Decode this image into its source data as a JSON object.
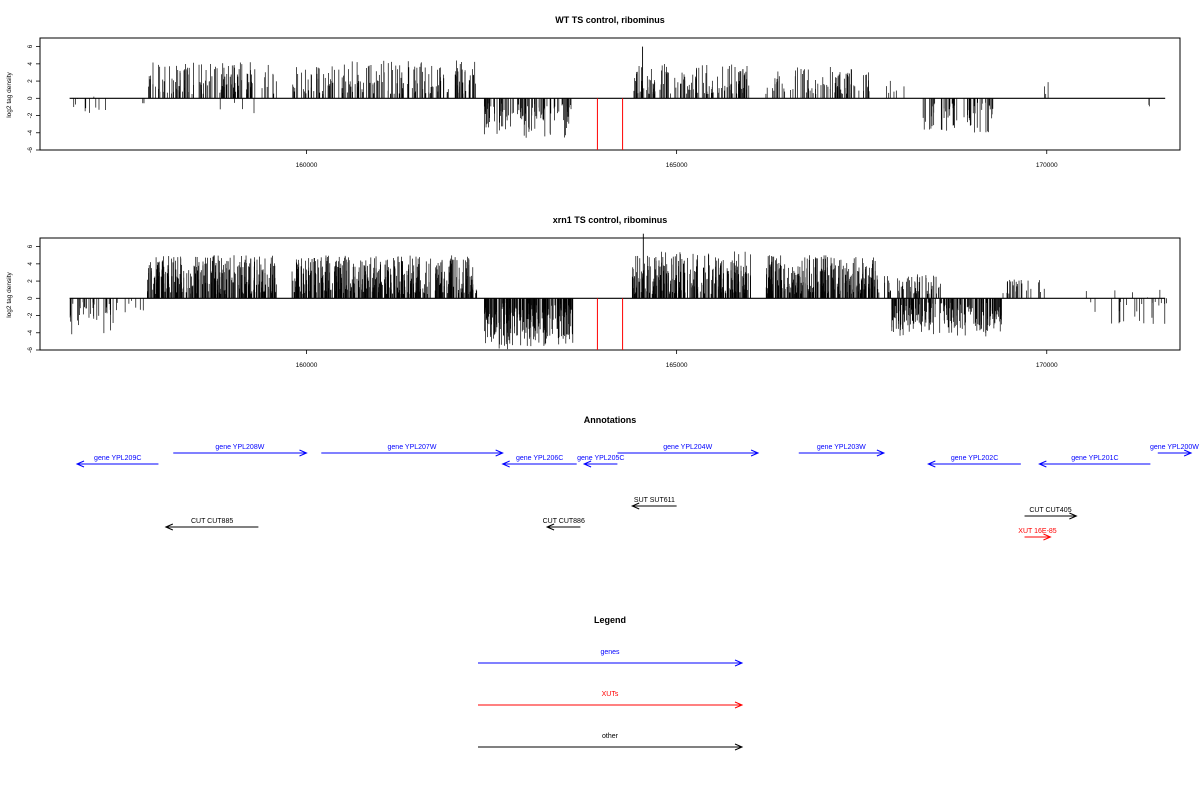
{
  "chart_data": [
    {
      "type": "bar",
      "panel": "wt",
      "title": "WT TS control, ribominus",
      "ylabel": "log2 tag density",
      "xlabel": "",
      "xlim": [
        156400,
        171800
      ],
      "ylim": [
        -6,
        7
      ],
      "yticks": [
        -6,
        -4,
        -2,
        0,
        2,
        4,
        6
      ],
      "xticks": [
        160000,
        165000,
        170000
      ],
      "xtick_labels": [
        "160000",
        "165000",
        "170000"
      ],
      "regions": [
        {
          "start": 156800,
          "end": 157300,
          "density": 0.12,
          "min": -2.2,
          "max": 0.2,
          "sign": -1
        },
        {
          "start": 157700,
          "end": 157850,
          "density": 0.05,
          "min": -1.2,
          "max": 0,
          "sign": -1
        },
        {
          "start": 157850,
          "end": 159600,
          "density": 0.35,
          "min": 0.5,
          "max": 4.2,
          "sign": 1
        },
        {
          "start": 158800,
          "end": 159500,
          "density": 0.03,
          "min": -2.5,
          "max": -0.5,
          "sign": -1
        },
        {
          "start": 159800,
          "end": 162300,
          "density": 0.35,
          "min": 0.5,
          "max": 4.4,
          "sign": 1
        },
        {
          "start": 162400,
          "end": 163600,
          "density": 0.4,
          "min": -4.6,
          "max": -0.5,
          "sign": -1
        },
        {
          "start": 164400,
          "end": 166000,
          "density": 0.4,
          "min": 0.5,
          "max": 4.0,
          "sign": 1
        },
        {
          "start": 166200,
          "end": 167600,
          "density": 0.3,
          "min": 0.5,
          "max": 3.8,
          "sign": 1
        },
        {
          "start": 167700,
          "end": 168200,
          "density": 0.06,
          "min": 0.5,
          "max": 2.2,
          "sign": 1
        },
        {
          "start": 168300,
          "end": 169300,
          "density": 0.3,
          "min": -4.0,
          "max": -0.5,
          "sign": -1
        },
        {
          "start": 169800,
          "end": 170100,
          "density": 0.05,
          "min": 0.5,
          "max": 2.0,
          "sign": 1
        },
        {
          "start": 171200,
          "end": 171700,
          "density": 0.02,
          "min": -1.6,
          "max": -0.5,
          "sign": -1
        }
      ],
      "spikes": [
        {
          "x": 164540,
          "y": 6.0
        }
      ],
      "red_lines": [
        {
          "x": 163930,
          "y": -6
        },
        {
          "x": 164270,
          "y": -6
        }
      ]
    },
    {
      "type": "bar",
      "panel": "xrn1",
      "title": "xrn1 TS control, ribominus",
      "ylabel": "log2 tag density",
      "xlabel": "",
      "xlim": [
        156400,
        171800
      ],
      "ylim": [
        -6,
        7
      ],
      "yticks": [
        -6,
        -4,
        -2,
        0,
        2,
        4,
        6
      ],
      "xticks": [
        160000,
        165000,
        170000
      ],
      "xtick_labels": [
        "160000",
        "165000",
        "170000"
      ],
      "regions": [
        {
          "start": 156800,
          "end": 157400,
          "density": 0.3,
          "min": -4.5,
          "max": -0.3,
          "sign": -1
        },
        {
          "start": 157400,
          "end": 157800,
          "density": 0.1,
          "min": -2.0,
          "max": -0.3,
          "sign": -1
        },
        {
          "start": 157850,
          "end": 159600,
          "density": 0.8,
          "min": 0.5,
          "max": 5.0,
          "sign": 1
        },
        {
          "start": 159800,
          "end": 162300,
          "density": 0.8,
          "min": 0.5,
          "max": 5.0,
          "sign": 1
        },
        {
          "start": 162400,
          "end": 163600,
          "density": 0.9,
          "min": -6.0,
          "max": -0.5,
          "sign": -1
        },
        {
          "start": 164400,
          "end": 166000,
          "density": 0.8,
          "min": 0.5,
          "max": 5.5,
          "sign": 1
        },
        {
          "start": 166200,
          "end": 167700,
          "density": 0.8,
          "min": 0.5,
          "max": 5.0,
          "sign": 1
        },
        {
          "start": 167700,
          "end": 168600,
          "density": 0.35,
          "min": 0.5,
          "max": 2.8,
          "sign": 1
        },
        {
          "start": 167900,
          "end": 169400,
          "density": 0.7,
          "min": -4.5,
          "max": -0.5,
          "sign": -1
        },
        {
          "start": 169400,
          "end": 170000,
          "density": 0.2,
          "min": 0.5,
          "max": 2.2,
          "sign": 1
        },
        {
          "start": 170500,
          "end": 171700,
          "density": 0.12,
          "min": -3.0,
          "max": 1.0,
          "sign": 0
        }
      ],
      "spikes": [
        {
          "x": 164550,
          "y": 7.5
        }
      ],
      "red_lines": [
        {
          "x": 163930,
          "y": -6
        },
        {
          "x": 164270,
          "y": -6
        }
      ]
    },
    {
      "type": "annotation_track",
      "panel": "annotations",
      "title": "Annotations",
      "xlim": [
        156400,
        171800
      ],
      "features": [
        {
          "label": "gene YPL209C",
          "start": 156900,
          "end": 158000,
          "dir": -1,
          "row": 1,
          "color": "#0000ff"
        },
        {
          "label": "gene YPL208W",
          "start": 158200,
          "end": 160000,
          "dir": 1,
          "row": 0,
          "color": "#0000ff"
        },
        {
          "label": "gene YPL207W",
          "start": 160200,
          "end": 162650,
          "dir": 1,
          "row": 0,
          "color": "#0000ff"
        },
        {
          "label": "gene YPL206C",
          "start": 162650,
          "end": 163650,
          "dir": -1,
          "row": 1,
          "color": "#0000ff"
        },
        {
          "label": "gene YPL205C",
          "start": 163750,
          "end": 164200,
          "dir": -1,
          "row": 1,
          "color": "#0000ff"
        },
        {
          "label": "gene YPL204W",
          "start": 164200,
          "end": 166100,
          "dir": 1,
          "row": 0,
          "color": "#0000ff"
        },
        {
          "label": "gene YPL203W",
          "start": 166650,
          "end": 167800,
          "dir": 1,
          "row": 0,
          "color": "#0000ff"
        },
        {
          "label": "gene YPL202C",
          "start": 168400,
          "end": 169650,
          "dir": -1,
          "row": 1,
          "color": "#0000ff"
        },
        {
          "label": "gene YPL201C",
          "start": 169900,
          "end": 171400,
          "dir": -1,
          "row": 1,
          "color": "#0000ff"
        },
        {
          "label": "gene YPL200W",
          "start": 171500,
          "end": 171950,
          "dir": 1,
          "row": 0,
          "color": "#0000ff"
        },
        {
          "label": "SUT SUT611",
          "start": 164400,
          "end": 165000,
          "dir": -1,
          "row": 2,
          "color": "#000000"
        },
        {
          "label": "CUT CUT885",
          "start": 158100,
          "end": 159350,
          "dir": -1,
          "row": 3,
          "color": "#000000"
        },
        {
          "label": "CUT CUT886",
          "start": 163250,
          "end": 163700,
          "dir": -1,
          "row": 3,
          "color": "#000000"
        },
        {
          "label": "CUT CUT405",
          "start": 169700,
          "end": 170400,
          "dir": 1,
          "row": 4,
          "color": "#000000"
        },
        {
          "label": "XUT 16E-85",
          "start": 169700,
          "end": 170050,
          "dir": 1,
          "row": 5,
          "color": "#ff0000"
        }
      ]
    },
    {
      "type": "legend",
      "panel": "legend",
      "title": "Legend",
      "entries": [
        {
          "label": "genes",
          "color": "#0000ff"
        },
        {
          "label": "XUTs",
          "color": "#ff0000"
        },
        {
          "label": "other",
          "color": "#000000"
        }
      ]
    }
  ]
}
